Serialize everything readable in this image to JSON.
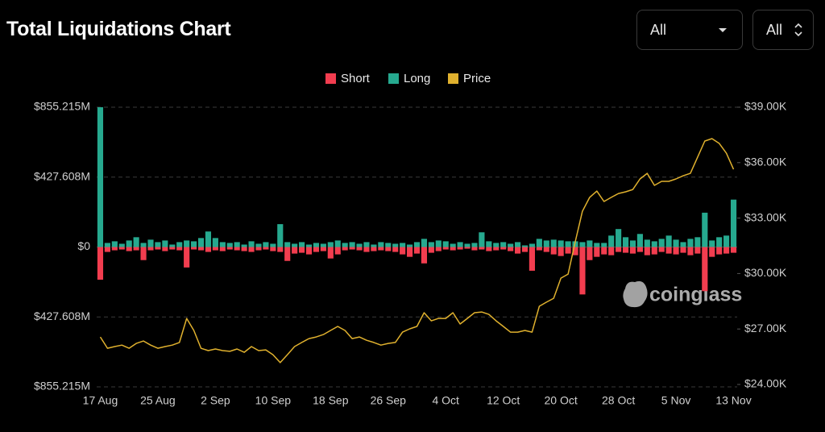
{
  "header": {
    "title": "Total Liquidations Chart"
  },
  "controls": [
    {
      "label": "All"
    },
    {
      "label": "All"
    }
  ],
  "watermark": "coinglass",
  "chart_data": {
    "type": "bar",
    "categories": [
      "17 Aug",
      null,
      null,
      null,
      null,
      null,
      null,
      null,
      "25 Aug",
      null,
      null,
      null,
      null,
      null,
      null,
      null,
      "2 Sep",
      null,
      null,
      null,
      null,
      null,
      null,
      null,
      "10 Sep",
      null,
      null,
      null,
      null,
      null,
      null,
      null,
      "18 Sep",
      null,
      null,
      null,
      null,
      null,
      null,
      null,
      "26 Sep",
      null,
      null,
      null,
      null,
      null,
      null,
      null,
      "4 Oct",
      null,
      null,
      null,
      null,
      null,
      null,
      null,
      "12 Oct",
      null,
      null,
      null,
      null,
      null,
      null,
      null,
      "20 Oct",
      null,
      null,
      null,
      null,
      null,
      null,
      null,
      "28 Oct",
      null,
      null,
      null,
      null,
      null,
      null,
      null,
      "5 Nov",
      null,
      null,
      null,
      null,
      null,
      null,
      null,
      "13 Nov"
    ],
    "series": [
      {
        "name": "Short",
        "color": "#f23d4f",
        "values": [
          -200,
          -30,
          -20,
          -15,
          -25,
          -20,
          -80,
          -20,
          -15,
          -25,
          -15,
          -20,
          -125,
          -15,
          -20,
          -30,
          -20,
          -25,
          -15,
          -20,
          -25,
          -30,
          -20,
          -15,
          -25,
          -30,
          -85,
          -40,
          -35,
          -45,
          -30,
          -25,
          -70,
          -45,
          -20,
          -15,
          -20,
          -30,
          -25,
          -20,
          -25,
          -30,
          -45,
          -60,
          -40,
          -100,
          -35,
          -25,
          -15,
          -20,
          -15,
          -10,
          -20,
          -15,
          -25,
          -20,
          -15,
          -25,
          -40,
          -30,
          -145,
          -20,
          -30,
          -45,
          -55,
          -40,
          -50,
          -290,
          -80,
          -60,
          -45,
          -50,
          -30,
          -35,
          -40,
          -30,
          -50,
          -45,
          -30,
          -40,
          -45,
          -35,
          -50,
          -40,
          -270,
          -60,
          -45,
          -40,
          -35
        ]
      },
      {
        "name": "Long",
        "color": "#26a98f",
        "values": [
          855,
          25,
          35,
          20,
          40,
          60,
          25,
          45,
          30,
          40,
          15,
          30,
          40,
          35,
          55,
          95,
          55,
          30,
          25,
          30,
          15,
          35,
          20,
          30,
          20,
          140,
          30,
          20,
          30,
          15,
          25,
          20,
          30,
          40,
          25,
          30,
          20,
          30,
          15,
          30,
          25,
          20,
          25,
          15,
          30,
          50,
          30,
          40,
          35,
          20,
          30,
          20,
          25,
          90,
          35,
          25,
          30,
          20,
          30,
          10,
          20,
          50,
          40,
          45,
          40,
          35,
          35,
          30,
          40,
          25,
          25,
          70,
          110,
          60,
          40,
          80,
          45,
          35,
          50,
          70,
          45,
          30,
          50,
          60,
          210,
          40,
          60,
          70,
          290
        ]
      },
      {
        "name": "Price",
        "color": "#e0b12e",
        "axis": "y2",
        "values": [
          26570,
          25960,
          26050,
          26130,
          25960,
          26220,
          26350,
          26130,
          25960,
          26050,
          26130,
          26270,
          27570,
          26920,
          25960,
          25830,
          25920,
          25830,
          25790,
          25920,
          25740,
          26050,
          25830,
          25870,
          25610,
          25180,
          25610,
          26050,
          26270,
          26480,
          26570,
          26700,
          26920,
          27140,
          26920,
          26480,
          26570,
          26390,
          26270,
          26130,
          26220,
          26270,
          26830,
          27010,
          27140,
          27880,
          27440,
          27570,
          27570,
          27880,
          27270,
          27570,
          27880,
          27920,
          27790,
          27440,
          27140,
          26830,
          26830,
          26920,
          26830,
          28230,
          28450,
          28660,
          29750,
          29970,
          31720,
          33370,
          34120,
          34460,
          33900,
          34120,
          34330,
          34420,
          34550,
          35120,
          35420,
          34770,
          34990,
          34990,
          35120,
          35290,
          35420,
          36300,
          37170,
          37300,
          37040,
          36510,
          35640
        ]
      }
    ],
    "ylim": [
      -855.215,
      855.215
    ],
    "yticks": [
      {
        "value": -855.215,
        "label": "$855.215M"
      },
      {
        "value": -427.608,
        "label": "$427.608M"
      },
      {
        "value": 0,
        "label": "$0"
      },
      {
        "value": 427.608,
        "label": "$427.608M"
      },
      {
        "value": 855.215,
        "label": "$855.215M"
      }
    ],
    "y2lim": [
      24000,
      39000
    ],
    "y2ticks": [
      {
        "value": 24000,
        "label": "$24.00K"
      },
      {
        "value": 27000,
        "label": "$27.00K"
      },
      {
        "value": 30000,
        "label": "$30.00K"
      },
      {
        "value": 33000,
        "label": "$33.00K"
      },
      {
        "value": 36000,
        "label": "$36.00K"
      },
      {
        "value": 39000,
        "label": "$39.00K"
      }
    ],
    "grid": true,
    "legend": "top"
  }
}
